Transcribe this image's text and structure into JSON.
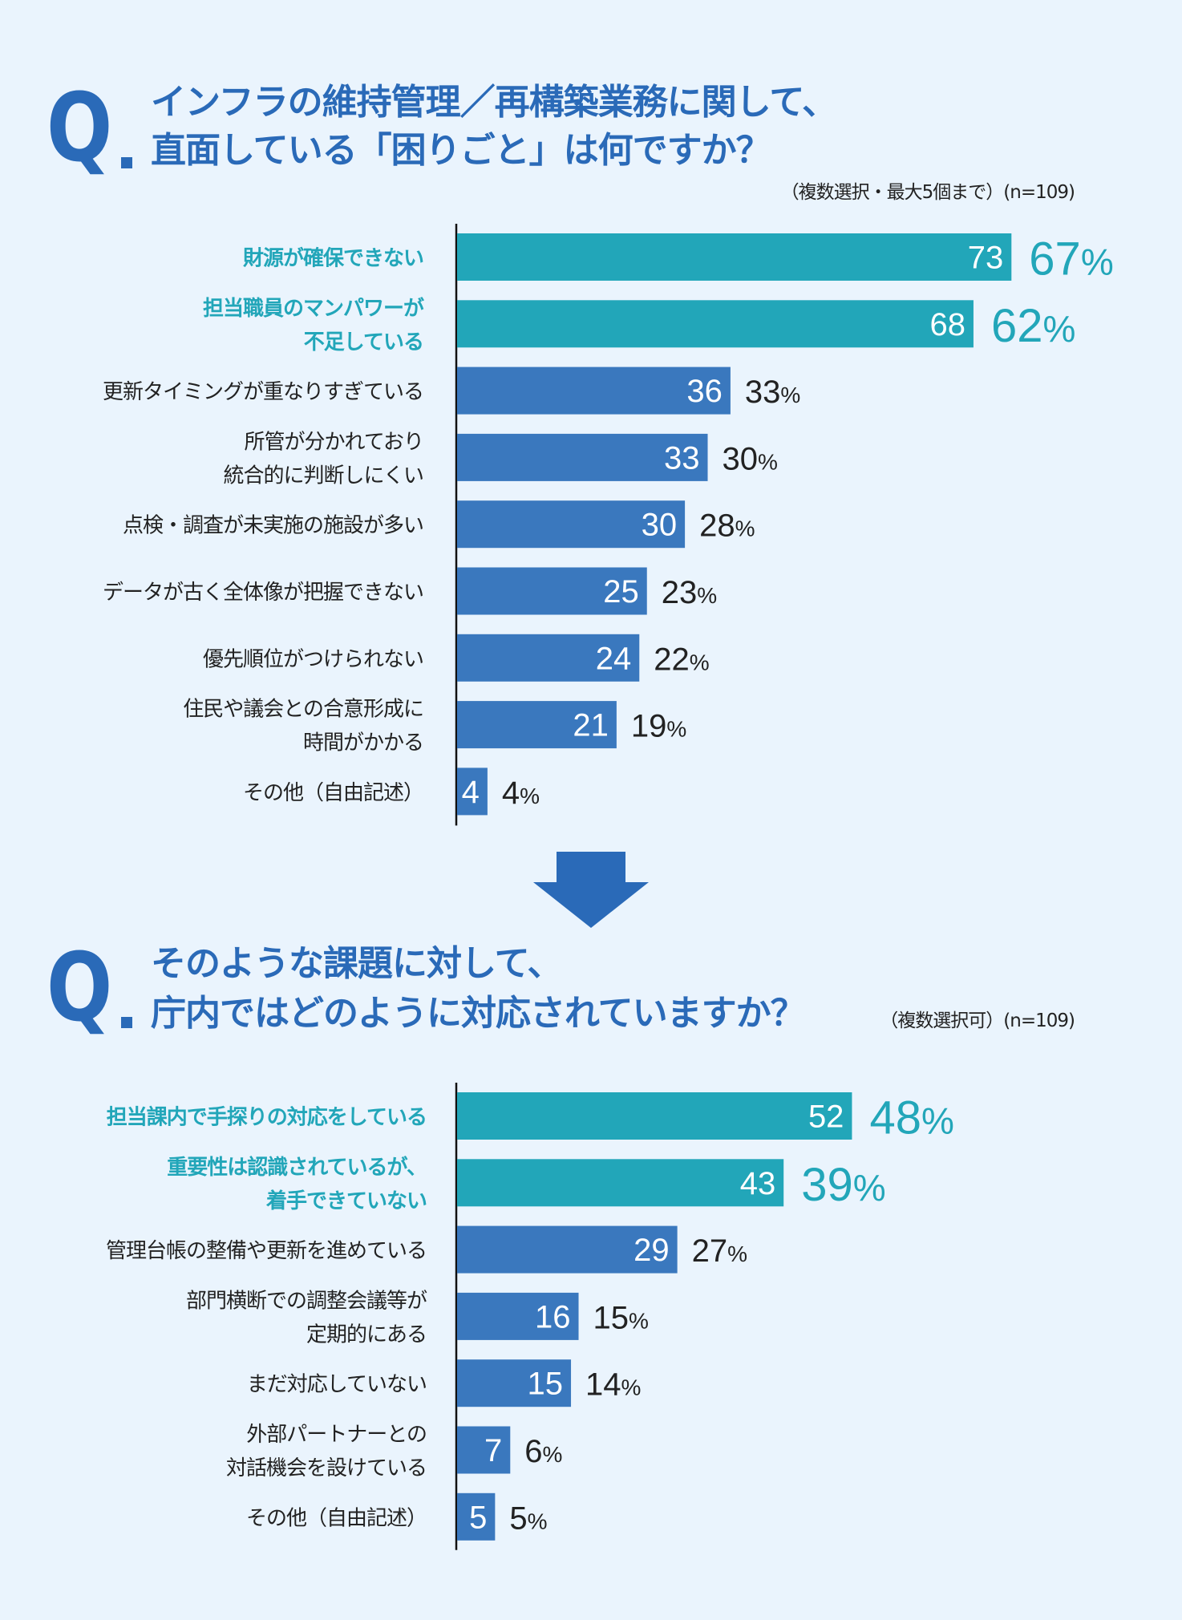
{
  "colors": {
    "background": "#EAF4FD",
    "title": "#2A6AB8",
    "highlight": "#22A6B9",
    "bar": "#3A78BE",
    "text": "#222222",
    "axis": "#111111",
    "arrow": "#2A6AB8"
  },
  "q_mark": "Q",
  "q1": {
    "line1": "インフラの維持管理／再構築業務に関して、",
    "line2": "直面している「困りごと」は何ですか？",
    "note": "（複数選択・最大5個まで）(n=109)"
  },
  "q2": {
    "line1": "そのような課題に対して、",
    "line2": "庁内ではどのように対応されていますか？",
    "note": "（複数選択可）(n=109)"
  },
  "arrow_icon": "down-arrow-icon",
  "chart_data": [
    {
      "type": "bar",
      "orientation": "horizontal",
      "title": "インフラの維持管理／再構築業務に関して、直面している「困りごと」は何ですか？",
      "note": "（複数選択・最大5個まで）(n=109)",
      "n": 109,
      "xlim": [
        0,
        80
      ],
      "grid": false,
      "categories": [
        {
          "lines": [
            "財源が確保できない"
          ],
          "value": 73,
          "percent": "67",
          "highlight": true
        },
        {
          "lines": [
            "担当職員のマンパワーが",
            "不足している"
          ],
          "value": 68,
          "percent": "62",
          "highlight": true
        },
        {
          "lines": [
            "更新タイミングが重なりすぎている"
          ],
          "value": 36,
          "percent": "33",
          "highlight": false
        },
        {
          "lines": [
            "所管が分かれており",
            "統合的に判断しにくい"
          ],
          "value": 33,
          "percent": "30",
          "highlight": false
        },
        {
          "lines": [
            "点検・調査が未実施の施設が多い"
          ],
          "value": 30,
          "percent": "28",
          "highlight": false
        },
        {
          "lines": [
            "データが古く全体像が把握できない"
          ],
          "value": 25,
          "percent": "23",
          "highlight": false
        },
        {
          "lines": [
            "優先順位がつけられない"
          ],
          "value": 24,
          "percent": "22",
          "highlight": false
        },
        {
          "lines": [
            "住民や議会との合意形成に",
            "時間がかかる"
          ],
          "value": 21,
          "percent": "19",
          "highlight": false
        },
        {
          "lines": [
            "その他（自由記述）"
          ],
          "value": 4,
          "percent": "4",
          "highlight": false
        }
      ],
      "percent_suffix": "%"
    },
    {
      "type": "bar",
      "orientation": "horizontal",
      "title": "そのような課題に対して、庁内ではどのように対応されていますか？",
      "note": "（複数選択可）(n=109)",
      "n": 109,
      "xlim": [
        0,
        80
      ],
      "grid": false,
      "categories": [
        {
          "lines": [
            "担当課内で手探りの対応をしている"
          ],
          "value": 52,
          "percent": "48",
          "highlight": true
        },
        {
          "lines": [
            "重要性は認識されているが、",
            "着手できていない"
          ],
          "value": 43,
          "percent": "39",
          "highlight": true
        },
        {
          "lines": [
            "管理台帳の整備や更新を進めている"
          ],
          "value": 29,
          "percent": "27",
          "highlight": false
        },
        {
          "lines": [
            "部門横断での調整会議等が",
            "定期的にある"
          ],
          "value": 16,
          "percent": "15",
          "highlight": false
        },
        {
          "lines": [
            "まだ対応していない"
          ],
          "value": 15,
          "percent": "14",
          "highlight": false
        },
        {
          "lines": [
            "外部パートナーとの",
            "対話機会を設けている"
          ],
          "value": 7,
          "percent": "6",
          "highlight": false
        },
        {
          "lines": [
            "その他（自由記述）"
          ],
          "value": 5,
          "percent": "5",
          "highlight": false
        }
      ],
      "percent_suffix": "%"
    }
  ]
}
